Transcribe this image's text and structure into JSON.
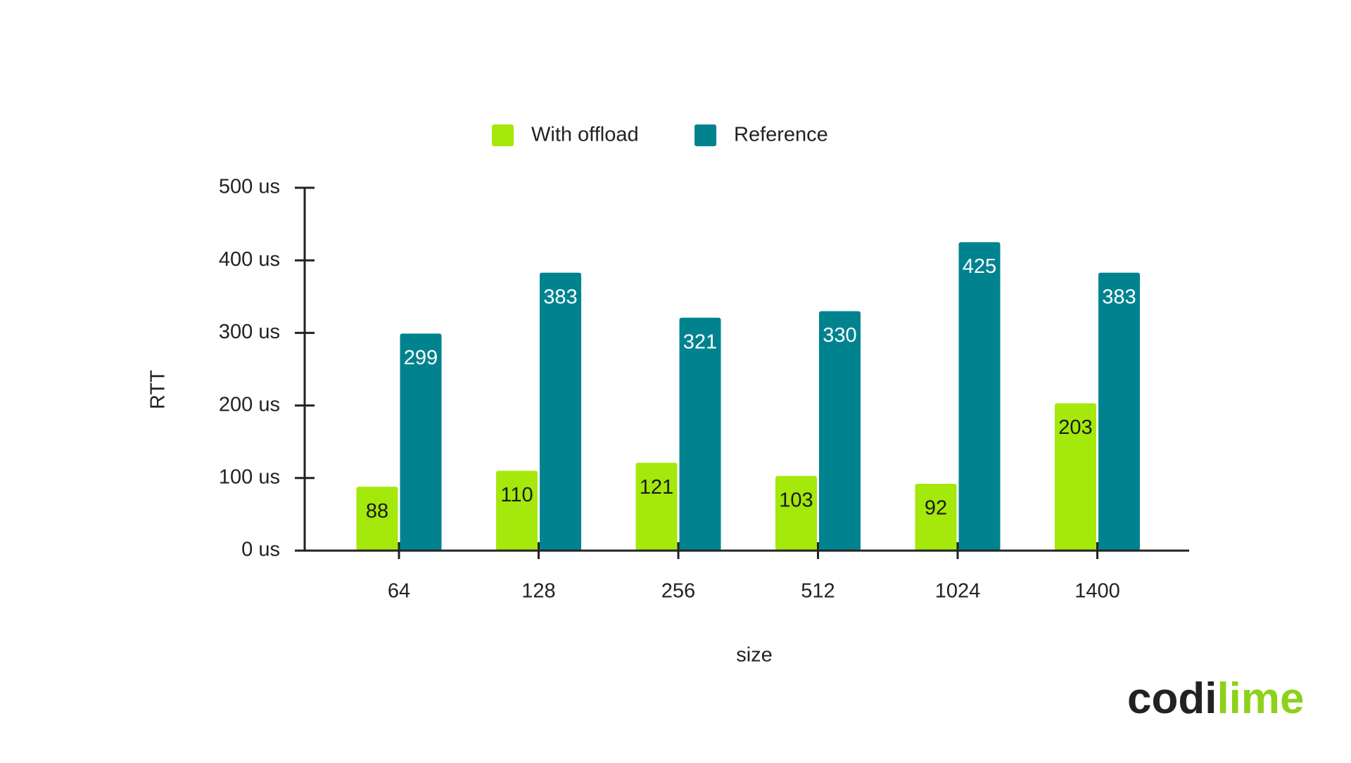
{
  "chart_data": {
    "type": "bar",
    "categories": [
      "64",
      "128",
      "256",
      "512",
      "1024",
      "1400"
    ],
    "series": [
      {
        "name": "With offload",
        "color": "#a4e80c",
        "values": [
          88,
          110,
          121,
          103,
          92,
          203
        ]
      },
      {
        "name": "Reference",
        "color": "#00838f",
        "values": [
          299,
          383,
          321,
          330,
          425,
          383
        ]
      }
    ],
    "ylim": [
      0,
      500
    ],
    "yticks": [
      {
        "value": 0,
        "label": "0 us"
      },
      {
        "value": 100,
        "label": "100 us"
      },
      {
        "value": 200,
        "label": "200 us"
      },
      {
        "value": 300,
        "label": "300 us"
      },
      {
        "value": 400,
        "label": "400 us"
      },
      {
        "value": 500,
        "label": "500 us"
      }
    ],
    "xlabel": "size",
    "ylabel": "RTT",
    "legend": "top"
  },
  "logo": {
    "dark": "codi",
    "accent": "lime"
  }
}
